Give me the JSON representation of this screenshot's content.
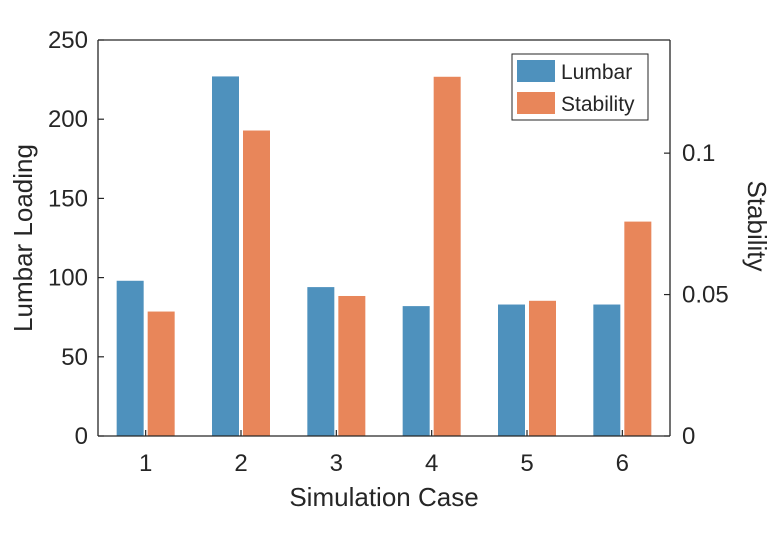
{
  "chart_data": {
    "type": "bar",
    "xlabel": "Simulation Case",
    "ylabel": "Lumbar Loading",
    "y2label": "Stability",
    "categories": [
      "1",
      "2",
      "3",
      "4",
      "5",
      "6"
    ],
    "ylim": [
      0,
      250
    ],
    "y2lim": [
      0,
      0.14
    ],
    "yticks": [
      "0",
      "50",
      "100",
      "150",
      "200",
      "250"
    ],
    "y2ticks": [
      "0",
      "0.05",
      "0.1"
    ],
    "grid": false,
    "legend_position": "top-right",
    "series": [
      {
        "name": "Lumbar",
        "axis": "left",
        "color": "#4E91BD",
        "values": [
          98,
          227,
          94,
          82,
          83,
          83
        ]
      },
      {
        "name": "Stability",
        "axis": "right",
        "color": "#E8865A",
        "values": [
          0.044,
          0.108,
          0.0495,
          0.127,
          0.0478,
          0.0758
        ]
      }
    ]
  }
}
